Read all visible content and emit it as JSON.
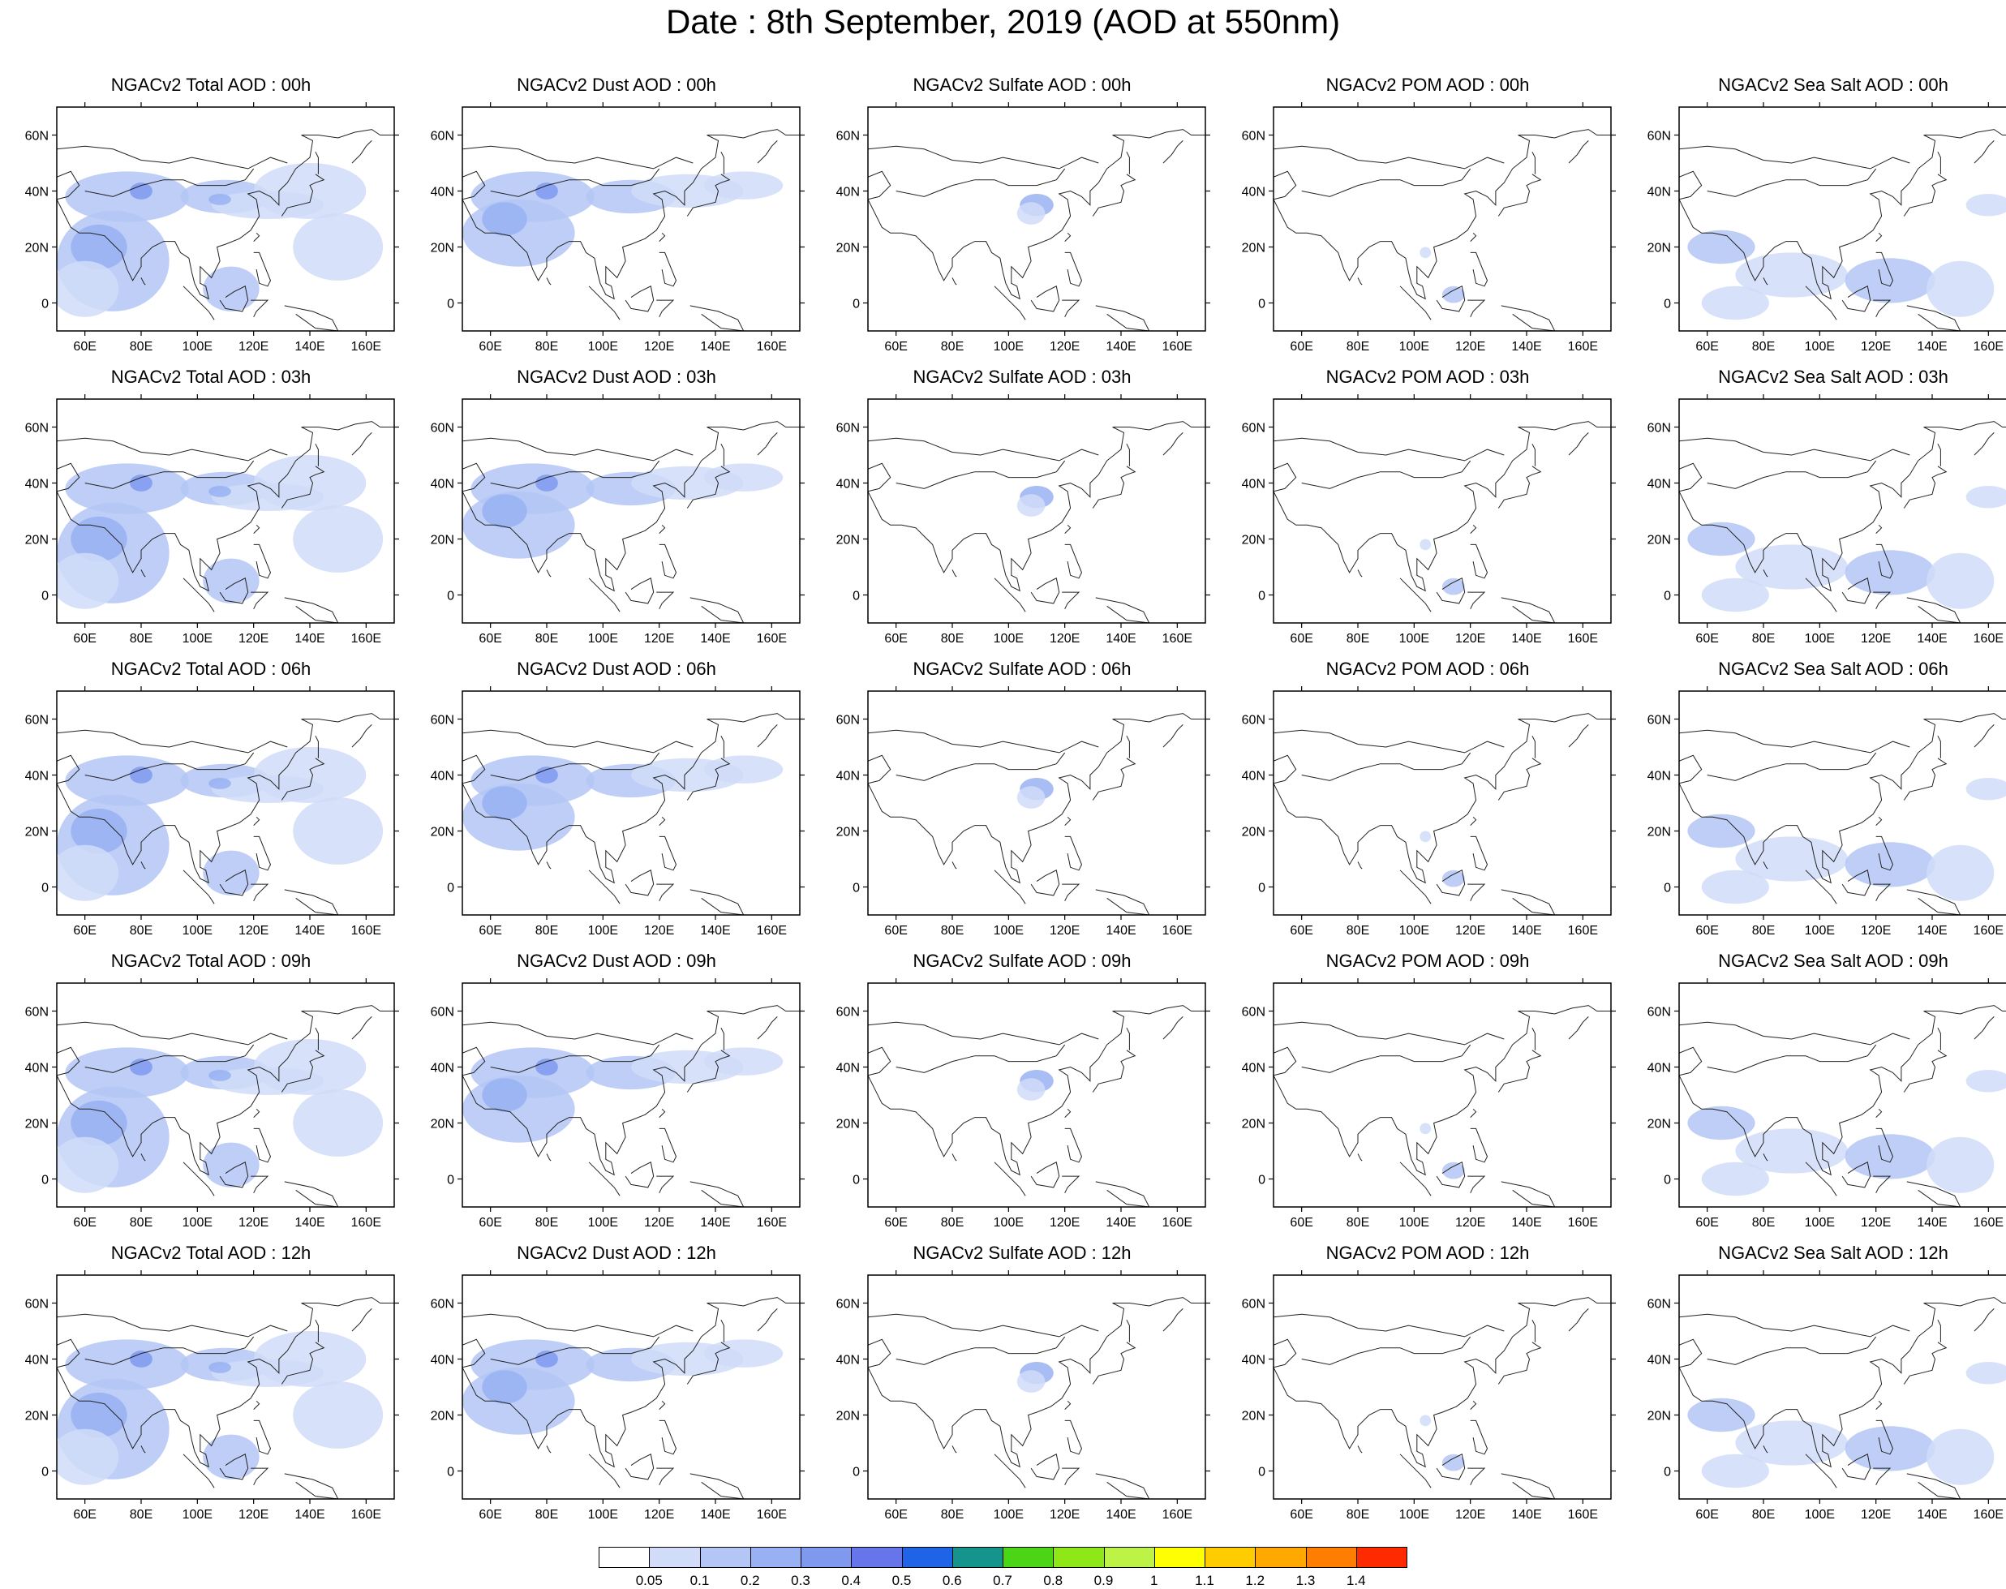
{
  "title": "Date : 8th September, 2019 (AOD at 550nm)",
  "panels": [
    [
      "NGACv2 Total AOD : 00h",
      "NGACv2 Dust AOD : 00h",
      "NGACv2 Sulfate AOD : 00h",
      "NGACv2 POM AOD : 00h",
      "NGACv2 Sea Salt AOD : 00h"
    ],
    [
      "NGACv2 Total AOD : 03h",
      "NGACv2 Dust AOD : 03h",
      "NGACv2 Sulfate AOD : 03h",
      "NGACv2 POM AOD : 03h",
      "NGACv2 Sea Salt AOD : 03h"
    ],
    [
      "NGACv2 Total AOD : 06h",
      "NGACv2 Dust AOD : 06h",
      "NGACv2 Sulfate AOD : 06h",
      "NGACv2 POM AOD : 06h",
      "NGACv2 Sea Salt AOD : 06h"
    ],
    [
      "NGACv2 Total AOD : 09h",
      "NGACv2 Dust AOD : 09h",
      "NGACv2 Sulfate AOD : 09h",
      "NGACv2 POM AOD : 09h",
      "NGACv2 Sea Salt  AOD : 09h"
    ],
    [
      "NGACv2 Total AOD  : 12h",
      "NGACv2 Dust AOD : 12h",
      "NGACv2 Sulfate AOD : 12h",
      "NGACv2 POM  AOD : 12h",
      "NGACv2 Sea Salt  AOD : 12h"
    ]
  ],
  "map": {
    "lat_ticks": [
      "60N",
      "40N",
      "20N",
      "0"
    ],
    "lat_values": [
      60,
      40,
      20,
      0
    ],
    "lon_ticks": [
      "60E",
      "80E",
      "100E",
      "120E",
      "140E",
      "160E"
    ],
    "lon_values": [
      60,
      80,
      100,
      120,
      140,
      160
    ],
    "lon_range": [
      50,
      170
    ],
    "lat_range": [
      -10,
      70
    ]
  },
  "colorbar": {
    "colors": [
      "#ffffff",
      "#d0dcf8",
      "#b3c6f5",
      "#98b1f2",
      "#7f99ee",
      "#6676ea",
      "#1f63e6",
      "#14948c",
      "#4cd417",
      "#8ee817",
      "#bdf246",
      "#ffff00",
      "#ffcc00",
      "#ffa800",
      "#ff7d00",
      "#ff2a00"
    ],
    "labels": [
      "0.05",
      "0.1",
      "0.2",
      "0.3",
      "0.4",
      "0.5",
      "0.6",
      "0.7",
      "0.8",
      "0.9",
      "1",
      "1.1",
      "1.2",
      "1.3",
      "1.4"
    ]
  }
}
